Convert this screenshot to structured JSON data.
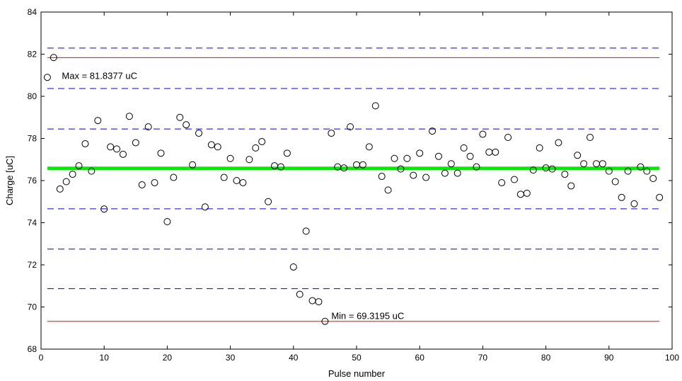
{
  "chart_data": {
    "type": "scatter",
    "xlabel": "Pulse number",
    "ylabel": "Charge [uC]",
    "xlim": [
      0,
      100
    ],
    "ylim": [
      68,
      84
    ],
    "xticks": [
      0,
      10,
      20,
      30,
      40,
      50,
      60,
      70,
      80,
      90,
      100
    ],
    "yticks": [
      68,
      70,
      72,
      74,
      76,
      78,
      80,
      82,
      84
    ],
    "grid": false,
    "series": [
      {
        "marker": "circle",
        "color": "#000000",
        "x": [
          1,
          2,
          3,
          4,
          5,
          6,
          7,
          8,
          9,
          10,
          11,
          12,
          13,
          14,
          15,
          16,
          17,
          18,
          19,
          20,
          21,
          22,
          23,
          24,
          25,
          26,
          27,
          28,
          29,
          30,
          31,
          32,
          33,
          34,
          35,
          36,
          37,
          38,
          39,
          40,
          41,
          42,
          43,
          44,
          45,
          46,
          47,
          48,
          49,
          50,
          51,
          52,
          53,
          54,
          55,
          56,
          57,
          58,
          59,
          60,
          61,
          62,
          63,
          64,
          65,
          66,
          67,
          68,
          69,
          70,
          71,
          72,
          73,
          74,
          75,
          76,
          77,
          78,
          79,
          80,
          81,
          82,
          83,
          84,
          85,
          86,
          87,
          88,
          89,
          90,
          91,
          92,
          93,
          94,
          95,
          96,
          97,
          98
        ],
        "y": [
          80.9,
          81.84,
          75.6,
          75.95,
          76.3,
          76.7,
          77.75,
          76.45,
          78.85,
          74.65,
          77.6,
          77.5,
          77.25,
          79.05,
          77.8,
          75.8,
          78.55,
          75.9,
          77.3,
          74.05,
          76.15,
          79.0,
          78.65,
          76.75,
          78.25,
          74.75,
          77.7,
          77.6,
          76.15,
          77.05,
          76.0,
          75.9,
          77.0,
          77.55,
          77.85,
          75.0,
          76.7,
          76.65,
          77.3,
          71.9,
          70.6,
          73.6,
          70.3,
          70.25,
          69.32,
          78.25,
          76.65,
          76.6,
          78.55,
          76.75,
          76.75,
          77.6,
          79.55,
          76.2,
          75.55,
          77.05,
          76.55,
          77.05,
          76.25,
          77.3,
          76.15,
          78.35,
          77.15,
          76.35,
          76.8,
          76.35,
          77.55,
          77.15,
          76.65,
          78.2,
          77.35,
          77.35,
          75.9,
          78.05,
          76.05,
          75.35,
          75.4,
          76.5,
          77.55,
          76.6,
          76.55,
          77.8,
          76.3,
          75.75,
          77.2,
          76.8,
          78.05,
          76.8,
          76.8,
          76.45,
          75.95,
          75.2,
          76.45,
          74.9,
          76.65,
          76.45,
          76.1,
          75.2
        ]
      }
    ],
    "mean_line": {
      "y": 76.58,
      "color": "#00ee00"
    },
    "sigma_lines": {
      "values": [
        82.29,
        80.37,
        78.45,
        74.66,
        72.75,
        70.87
      ],
      "color": "#0000dd",
      "style": "dashed"
    },
    "minmax_lines": {
      "values": [
        81.8377,
        69.3195
      ],
      "color": "#ff0000"
    },
    "annotations": [
      {
        "text": "Max = 81.8377 uC",
        "x": 3.3,
        "y": 81.0
      },
      {
        "text": "Min = 69.3195 uC",
        "x": 46.0,
        "y": 69.6
      }
    ]
  }
}
